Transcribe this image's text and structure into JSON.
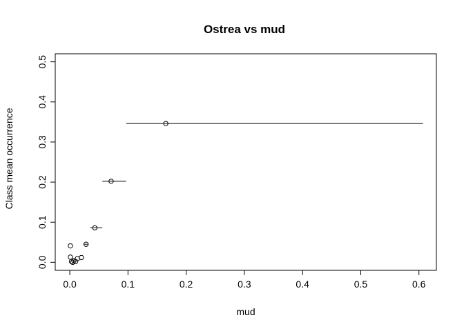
{
  "chart_data": {
    "type": "scatter",
    "title": "Ostrea vs mud",
    "xlabel": "mud",
    "ylabel": "Class mean occurrence",
    "xlim": [
      -0.025,
      0.63
    ],
    "ylim": [
      -0.02,
      0.52
    ],
    "x_ticks": [
      0.0,
      0.1,
      0.2,
      0.3,
      0.4,
      0.5,
      0.6
    ],
    "x_tick_labels": [
      "0.0",
      "0.1",
      "0.2",
      "0.3",
      "0.4",
      "0.5",
      "0.6"
    ],
    "y_ticks": [
      0.0,
      0.1,
      0.2,
      0.3,
      0.4,
      0.5
    ],
    "y_tick_labels": [
      "0.0",
      "0.1",
      "0.2",
      "0.3",
      "0.4",
      "0.5"
    ],
    "grid": false,
    "points": [
      {
        "x": 0.001,
        "y": 0.041
      },
      {
        "x": 0.001,
        "y": 0.013
      },
      {
        "x": 0.003,
        "y": 0.002
      },
      {
        "x": 0.005,
        "y": 0.0
      },
      {
        "x": 0.007,
        "y": 0.004
      },
      {
        "x": 0.01,
        "y": 0.002
      },
      {
        "x": 0.013,
        "y": 0.009
      },
      {
        "x": 0.02,
        "y": 0.012
      },
      {
        "x": 0.028,
        "y": 0.045
      },
      {
        "x": 0.043,
        "y": 0.086
      },
      {
        "x": 0.071,
        "y": 0.202
      },
      {
        "x": 0.165,
        "y": 0.346
      }
    ],
    "ranges": [
      {
        "x0": 0.025,
        "x1": 0.031,
        "y": 0.045
      },
      {
        "x0": 0.035,
        "x1": 0.056,
        "y": 0.086
      },
      {
        "x0": 0.056,
        "x1": 0.097,
        "y": 0.202
      },
      {
        "x0": 0.097,
        "x1": 0.607,
        "y": 0.346
      }
    ]
  }
}
